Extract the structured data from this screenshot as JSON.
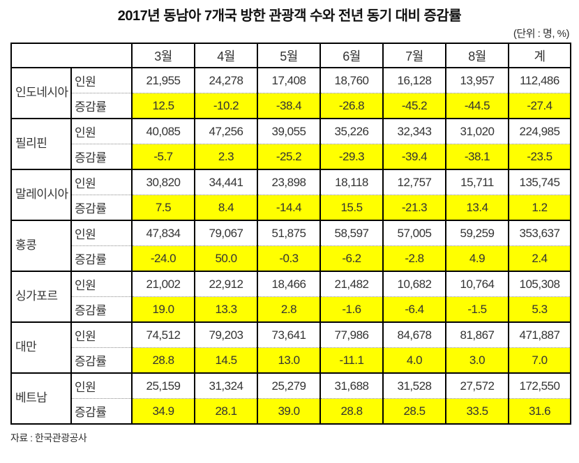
{
  "title": "2017년 동남아 7개국 방한 관광객 수와 전년 동기 대비 증감률",
  "unit_note": "(단위 : 명, %)",
  "source": "자료 : 한국관광공사",
  "chart_data": {
    "type": "table",
    "title": "2017년 동남아 7개국 방한 관광객 수와 전년 동기 대비 증감률",
    "unit": "명, %",
    "columns": [
      "3월",
      "4월",
      "5월",
      "6월",
      "7월",
      "8월",
      "계"
    ],
    "row_labels": {
      "visitors": "인원",
      "change": "증감률"
    },
    "highlight_color": "#FFFF00",
    "countries": [
      {
        "name": "인도네시아",
        "visitors": [
          21955,
          24278,
          17408,
          18760,
          16128,
          13957,
          112486
        ],
        "change": [
          12.5,
          -10.2,
          -38.4,
          -26.8,
          -45.2,
          -44.5,
          -27.4
        ]
      },
      {
        "name": "필리핀",
        "visitors": [
          40085,
          47256,
          39055,
          35226,
          32343,
          31020,
          224985
        ],
        "change": [
          -5.7,
          2.3,
          -25.2,
          -29.3,
          -39.4,
          -38.1,
          -23.5
        ]
      },
      {
        "name": "말레이시아",
        "visitors": [
          30820,
          34441,
          23898,
          18118,
          12757,
          15711,
          135745
        ],
        "change": [
          7.5,
          8.4,
          -14.4,
          15.5,
          -21.3,
          13.4,
          1.2
        ]
      },
      {
        "name": "홍콩",
        "visitors": [
          47834,
          79067,
          51875,
          58597,
          57005,
          59259,
          353637
        ],
        "change": [
          -24.0,
          50.0,
          -0.3,
          -6.2,
          -2.8,
          4.9,
          2.4
        ]
      },
      {
        "name": "싱가포르",
        "visitors": [
          21002,
          22912,
          18466,
          21482,
          10682,
          10764,
          105308
        ],
        "change": [
          19.0,
          13.3,
          2.8,
          -1.6,
          -6.4,
          -1.5,
          5.3
        ]
      },
      {
        "name": "대만",
        "visitors": [
          74512,
          79203,
          73641,
          77986,
          84678,
          81867,
          471887
        ],
        "change": [
          28.8,
          14.5,
          13.0,
          -11.1,
          4.0,
          3.0,
          7.0
        ]
      },
      {
        "name": "베트남",
        "visitors": [
          25159,
          31324,
          25279,
          31688,
          31528,
          27572,
          172550
        ],
        "change": [
          34.9,
          28.1,
          39.0,
          28.8,
          28.5,
          33.5,
          31.6
        ]
      }
    ]
  }
}
